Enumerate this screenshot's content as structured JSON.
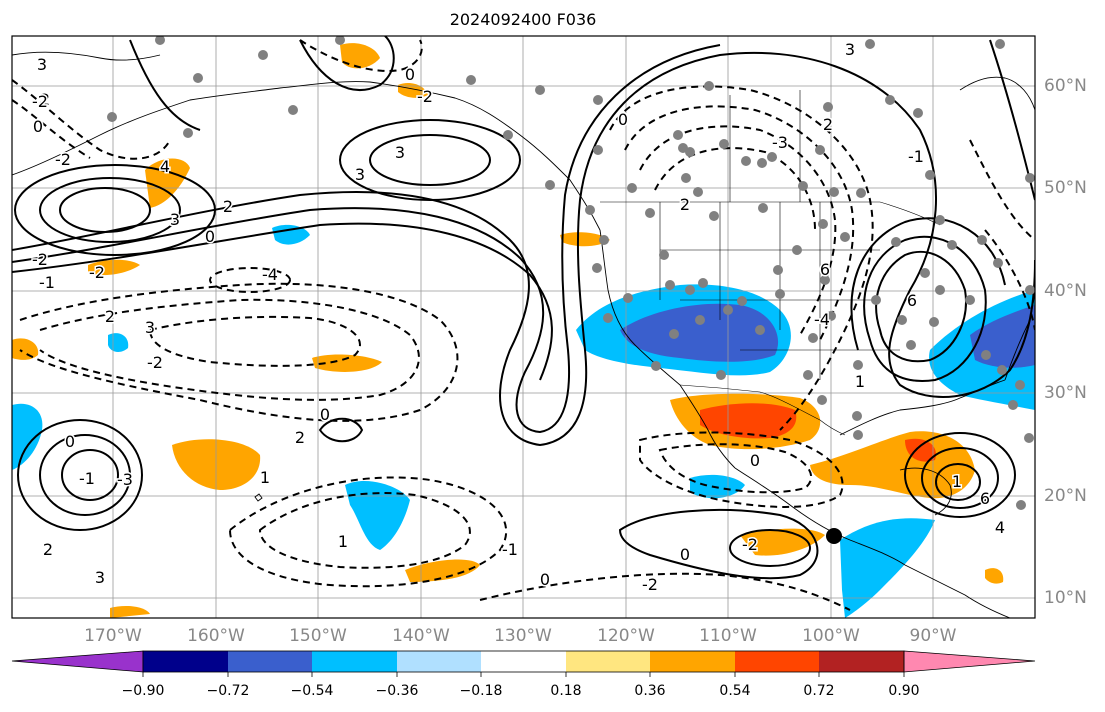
{
  "title": "2024092400 F036",
  "map": {
    "lon_labels": [
      "170°W",
      "160°W",
      "150°W",
      "140°W",
      "130°W",
      "120°W",
      "110°W",
      "100°W",
      "90°W"
    ],
    "lat_labels": [
      "60°N",
      "50°N",
      "40°N",
      "30°N",
      "20°N",
      "10°N"
    ],
    "contour_labels": [
      "3",
      "3",
      "2",
      "-2",
      "0",
      "-2",
      "4",
      "3",
      "2",
      "0",
      "-1",
      "-2",
      "-2",
      "2",
      "3",
      "-4",
      "3",
      "-2",
      "0",
      "2",
      "3",
      "2",
      "-3",
      "0",
      "2",
      "-1",
      "6",
      "-4",
      "1",
      "6",
      "-2",
      "1",
      "2",
      "-3",
      "0",
      "-1",
      "2",
      "3",
      "1",
      "0",
      "-1",
      "0",
      "-2",
      "0",
      "-2",
      "0",
      "1",
      "6",
      "4"
    ],
    "colors": {
      "positive_light": "#ffe680",
      "positive_orange": "#ffa500",
      "positive_red": "#ff4500",
      "negative_light": "#b0e0ff",
      "negative_cyan": "#00bfff",
      "negative_blue": "#3a5fcd"
    }
  },
  "colorbar": {
    "ticks": [
      "−0.90",
      "−0.72",
      "−0.54",
      "−0.36",
      "−0.18",
      "0.18",
      "0.36",
      "0.54",
      "0.72",
      "0.90"
    ],
    "colors": [
      "#9932cc",
      "#00008b",
      "#3a5fcd",
      "#00bfff",
      "#b0e0ff",
      "#ffffff",
      "#ffe680",
      "#ffa500",
      "#ff4500",
      "#b22222",
      "#ff88b0"
    ]
  }
}
